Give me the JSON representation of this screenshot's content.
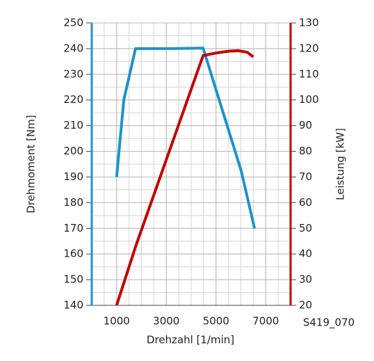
{
  "chart_data": {
    "type": "line",
    "x_label": "Drehzahl [1/min]",
    "y_label": "Drehmoment [Nm]",
    "y2_label": "Leistung [kW]",
    "annotation": "S419_070",
    "xlim": [
      0,
      8000
    ],
    "xticks": [
      1000,
      3000,
      5000,
      7000
    ],
    "ylim": [
      140,
      250
    ],
    "yticks": [
      140,
      150,
      160,
      170,
      180,
      190,
      200,
      210,
      220,
      230,
      240,
      250
    ],
    "y2lim": [
      20,
      130
    ],
    "y2ticks": [
      20,
      30,
      40,
      50,
      60,
      70,
      80,
      90,
      100,
      110,
      120,
      130
    ],
    "grid": true,
    "series": [
      {
        "name": "Drehmoment",
        "color": "#1e93c8",
        "x": [
          1000,
          1290,
          1760,
          3000,
          4480,
          6010,
          6550
        ],
        "values": [
          190,
          220,
          240,
          240,
          240.2,
          192.5,
          170
        ]
      },
      {
        "name": "Leistung",
        "color": "#c00000",
        "axis": "y2",
        "x": [
          1000,
          1760,
          4480,
          5000,
          5500,
          5900,
          6250,
          6500
        ],
        "values": [
          20,
          42.8,
          117.3,
          118.3,
          119,
          119.2,
          118.6,
          116.8
        ]
      }
    ]
  }
}
